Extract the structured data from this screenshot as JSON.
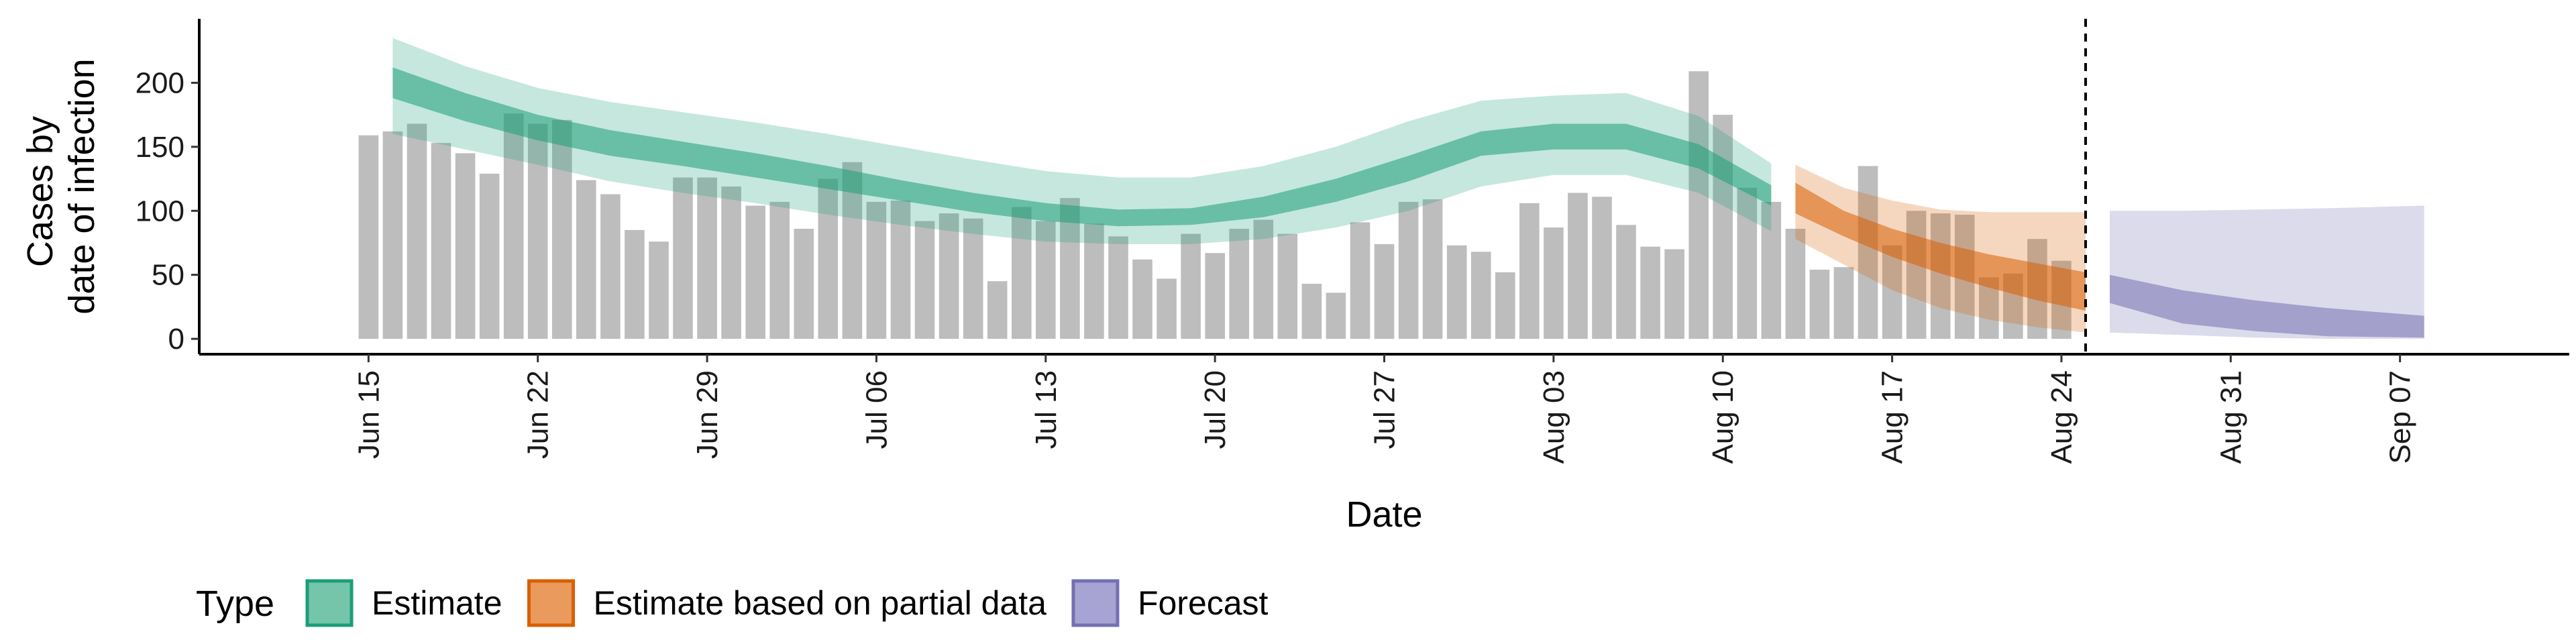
{
  "chart_data": {
    "type": "bar",
    "xlabel": "Date",
    "ylabel_lines": [
      "Cases by",
      "date of infection"
    ],
    "ylim": [
      -12,
      250
    ],
    "yticks": [
      0,
      50,
      100,
      150,
      200
    ],
    "xlim": [
      "2020-06-08",
      "2020-09-14"
    ],
    "xticks": [
      "2020-06-15",
      "2020-06-22",
      "2020-06-29",
      "2020-07-06",
      "2020-07-13",
      "2020-07-20",
      "2020-07-27",
      "2020-08-03",
      "2020-08-10",
      "2020-08-17",
      "2020-08-24",
      "2020-08-31",
      "2020-09-07"
    ],
    "xtick_labels": [
      "Jun 15",
      "Jun 22",
      "Jun 29",
      "Jul 06",
      "Jul 13",
      "Jul 20",
      "Jul 27",
      "Aug 03",
      "Aug 10",
      "Aug 17",
      "Aug 24",
      "Aug 31",
      "Sep 07"
    ],
    "forecast_boundary": "2020-08-25",
    "bar_color": "#bdbdbd",
    "bars": {
      "start_date": "2020-06-15",
      "values": [
        159,
        162,
        168,
        153,
        145,
        129,
        176,
        168,
        171,
        124,
        113,
        85,
        76,
        126,
        126,
        119,
        104,
        107,
        86,
        125,
        138,
        107,
        108,
        92,
        98,
        94,
        45,
        103,
        92,
        110,
        90,
        80,
        62,
        47,
        82,
        67,
        86,
        93,
        82,
        43,
        36,
        91,
        74,
        107,
        109,
        73,
        68,
        52,
        106,
        87,
        114,
        111,
        89,
        72,
        70,
        209,
        175,
        118,
        107,
        86,
        54,
        56,
        135,
        73,
        100,
        98,
        97,
        48,
        51,
        78,
        61
      ]
    },
    "series": [
      {
        "name": "Estimate",
        "color": "#1b9e77",
        "dates": [
          "2020-06-16",
          "2020-06-19",
          "2020-06-22",
          "2020-06-25",
          "2020-06-28",
          "2020-07-01",
          "2020-07-04",
          "2020-07-07",
          "2020-07-10",
          "2020-07-13",
          "2020-07-16",
          "2020-07-19",
          "2020-07-22",
          "2020-07-25",
          "2020-07-28",
          "2020-07-31",
          "2020-08-03",
          "2020-08-06",
          "2020-08-09",
          "2020-08-12"
        ],
        "outer_upper": [
          235,
          213,
          196,
          185,
          177,
          169,
          160,
          150,
          140,
          131,
          126,
          126,
          135,
          150,
          170,
          186,
          190,
          192,
          174,
          137
        ],
        "outer_lower": [
          160,
          148,
          136,
          123,
          114,
          106,
          97,
          89,
          82,
          76,
          74,
          74,
          78,
          87,
          100,
          119,
          128,
          128,
          114,
          84
        ],
        "inner_upper": [
          212,
          192,
          175,
          163,
          154,
          145,
          135,
          124,
          114,
          106,
          101,
          102,
          111,
          125,
          143,
          162,
          168,
          168,
          152,
          120
        ],
        "inner_lower": [
          188,
          170,
          155,
          143,
          135,
          126,
          117,
          108,
          99,
          92,
          88,
          89,
          95,
          107,
          123,
          143,
          148,
          148,
          133,
          104
        ]
      },
      {
        "name": "Estimate based on partial data",
        "color": "#d95f02",
        "dates": [
          "2020-08-13",
          "2020-08-15",
          "2020-08-17",
          "2020-08-19",
          "2020-08-21",
          "2020-08-23",
          "2020-08-25"
        ],
        "outer_upper": [
          136,
          118,
          108,
          101,
          99,
          99,
          99
        ],
        "outer_lower": [
          78,
          58,
          38,
          24,
          15,
          9,
          5
        ],
        "inner_upper": [
          122,
          100,
          86,
          75,
          66,
          59,
          52
        ],
        "inner_lower": [
          98,
          80,
          64,
          51,
          40,
          30,
          22
        ]
      },
      {
        "name": "Forecast",
        "color": "#7570b3",
        "dates": [
          "2020-08-26",
          "2020-08-29",
          "2020-09-01",
          "2020-09-04",
          "2020-09-08"
        ],
        "outer_upper": [
          100,
          100,
          101,
          102,
          104
        ],
        "outer_lower": [
          5,
          3,
          1,
          0,
          0
        ],
        "inner_upper": [
          50,
          38,
          30,
          24,
          18
        ],
        "inner_lower": [
          28,
          12,
          6,
          2,
          1
        ]
      }
    ],
    "legend": {
      "title": "Type",
      "position": "bottom-left",
      "items": [
        {
          "label": "Estimate",
          "fill": "#75c5ab",
          "border": "#1b9e77"
        },
        {
          "label": "Estimate based on partial data",
          "fill": "#e99a5c",
          "border": "#d95f02"
        },
        {
          "label": "Forecast",
          "fill": "#a7a4d3",
          "border": "#7570b3"
        }
      ]
    }
  }
}
